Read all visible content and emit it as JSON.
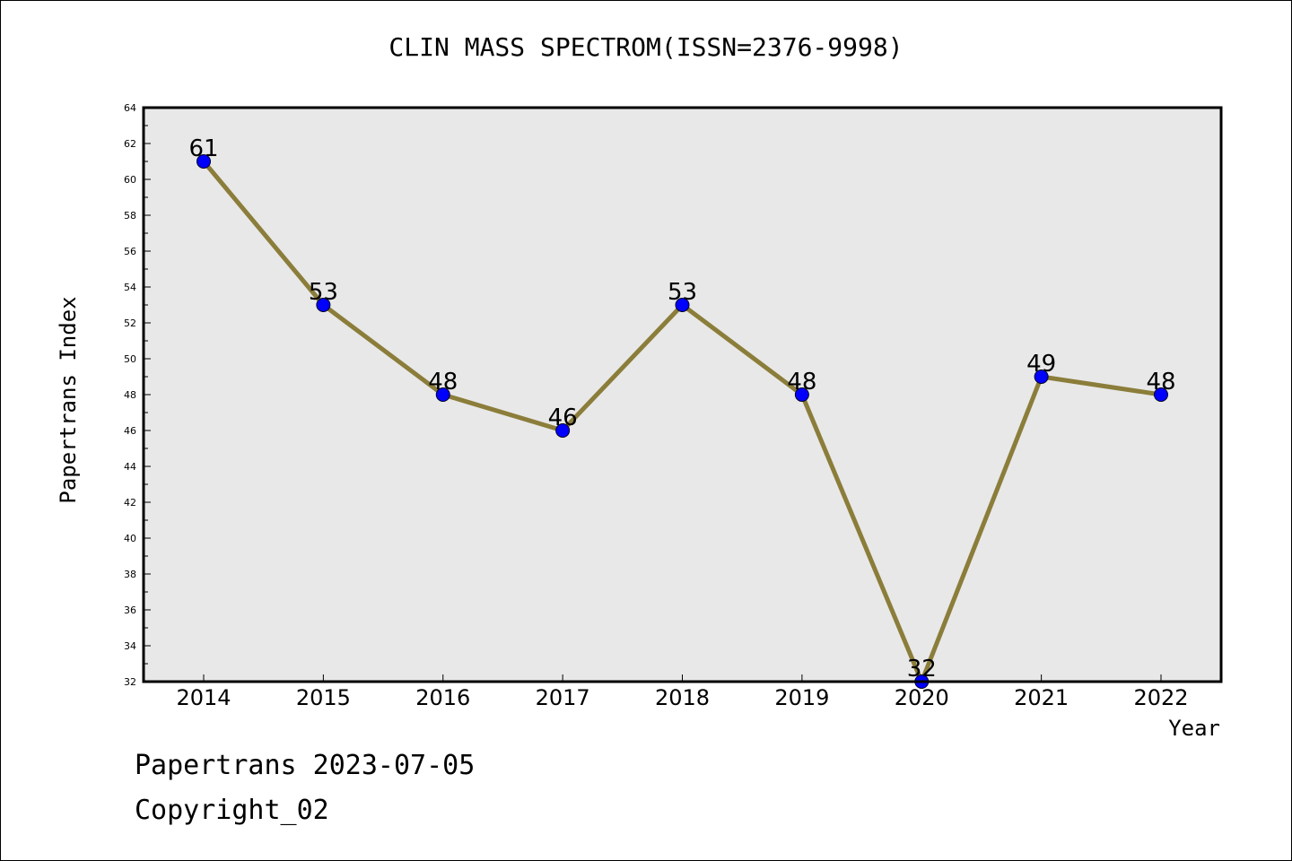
{
  "chart_data": {
    "type": "line",
    "title": "CLIN MASS SPECTROM(ISSN=2376-9998)",
    "xlabel": "Year",
    "ylabel": "Papertrans Index",
    "categories": [
      "2014",
      "2015",
      "2016",
      "2017",
      "2018",
      "2019",
      "2020",
      "2021",
      "2022"
    ],
    "series": [
      {
        "values": [
          61,
          53,
          48,
          46,
          53,
          48,
          32,
          49,
          48
        ]
      }
    ],
    "data_labels": [
      "61",
      "53",
      "48",
      "46",
      "53",
      "48",
      "32",
      "49",
      "48"
    ],
    "ylim": [
      32,
      64
    ],
    "yticks": [
      "32",
      "34",
      "36",
      "38",
      "40",
      "42",
      "44",
      "46",
      "48",
      "50",
      "52",
      "54",
      "56",
      "58",
      "60",
      "62",
      "64"
    ],
    "grid": false,
    "legend": "none",
    "colors": {
      "line": "#8b7d3a",
      "marker": "#0000ff",
      "plot_bg": "#e8e8e8"
    }
  },
  "footer": {
    "line1": "Papertrans 2023-07-05",
    "line2": "Copyright_02"
  }
}
